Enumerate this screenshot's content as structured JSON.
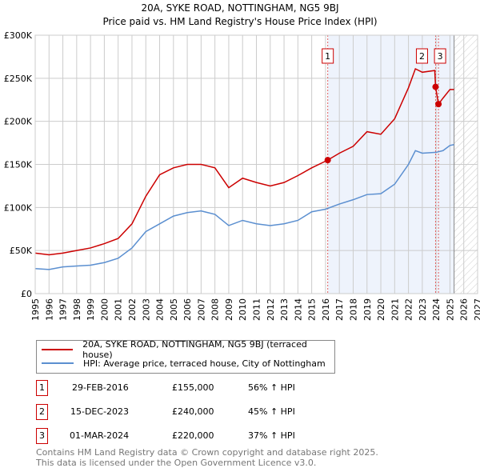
{
  "chart_data": {
    "type": "line",
    "title": "20A, SYKE ROAD, NOTTINGHAM, NG5 9BJ",
    "subtitle": "Price paid vs. HM Land Registry's House Price Index (HPI)",
    "xlim": [
      1995,
      2027
    ],
    "ylim": [
      0,
      300000
    ],
    "x_ticks": [
      "1995",
      "1996",
      "1997",
      "1998",
      "1999",
      "2000",
      "2001",
      "2002",
      "2003",
      "2004",
      "2005",
      "2006",
      "2007",
      "2008",
      "2009",
      "2010",
      "2011",
      "2012",
      "2013",
      "2014",
      "2015",
      "2016",
      "2017",
      "2018",
      "2019",
      "2020",
      "2021",
      "2022",
      "2023",
      "2024",
      "2025",
      "2026",
      "2027"
    ],
    "y_ticks": [
      {
        "v": 0,
        "label": "£0"
      },
      {
        "v": 50000,
        "label": "£50K"
      },
      {
        "v": 100000,
        "label": "£100K"
      },
      {
        "v": 150000,
        "label": "£150K"
      },
      {
        "v": 200000,
        "label": "£200K"
      },
      {
        "v": 250000,
        "label": "£250K"
      },
      {
        "v": 300000,
        "label": "£300K"
      }
    ],
    "grid": true,
    "series": [
      {
        "name": "20A, SYKE ROAD, NOTTINGHAM, NG5 9BJ (terraced house)",
        "color": "#cc0000",
        "x": [
          1995,
          1996,
          1997,
          1998,
          1999,
          2000,
          2001,
          2002,
          2003,
          2004,
          2005,
          2006,
          2007,
          2008,
          2009,
          2010,
          2011,
          2012,
          2013,
          2014,
          2015,
          2016.16,
          2017,
          2018,
          2019,
          2020,
          2021,
          2022,
          2022.5,
          2023,
          2023.9,
          2023.96,
          2024.17,
          2024.5,
          2025,
          2025.3
        ],
        "y": [
          47000,
          45000,
          47000,
          50000,
          53000,
          58000,
          64000,
          81000,
          113000,
          138000,
          146000,
          150000,
          150000,
          146000,
          123000,
          134000,
          129000,
          125000,
          129000,
          137000,
          146000,
          155000,
          163000,
          171000,
          188000,
          185000,
          203000,
          239000,
          261000,
          257000,
          259000,
          240000,
          220000,
          227000,
          237000,
          237000
        ]
      },
      {
        "name": "HPI: Average price, terraced house, City of Nottingham",
        "color": "#5b8fd0",
        "x": [
          1995,
          1996,
          1997,
          1998,
          1999,
          2000,
          2001,
          2002,
          2003,
          2004,
          2005,
          2006,
          2007,
          2008,
          2009,
          2010,
          2011,
          2012,
          2013,
          2014,
          2015,
          2016,
          2017,
          2018,
          2019,
          2020,
          2021,
          2022,
          2022.5,
          2023,
          2024,
          2024.5,
          2025,
          2025.3
        ],
        "y": [
          29000,
          28000,
          31000,
          32000,
          33000,
          36000,
          41000,
          53000,
          72000,
          81000,
          90000,
          94000,
          96000,
          92000,
          79000,
          85000,
          81000,
          79000,
          81000,
          85000,
          95000,
          98000,
          104000,
          109000,
          115000,
          116000,
          127000,
          150000,
          166000,
          163000,
          164000,
          166000,
          172000,
          173000
        ]
      }
    ],
    "sales": [
      {
        "num": "1",
        "x": 2016.16,
        "y": 155000,
        "date": "29-FEB-2016",
        "price": "£155,000",
        "hpi": "56% ↑ HPI"
      },
      {
        "num": "2",
        "x": 2023.96,
        "y": 240000,
        "date": "15-DEC-2023",
        "price": "£240,000",
        "hpi": "45% ↑ HPI"
      },
      {
        "num": "3",
        "x": 2024.17,
        "y": 220000,
        "date": "01-MAR-2024",
        "price": "£220,000",
        "hpi": "37% ↑ HPI"
      }
    ],
    "shaded_from": 2016.16,
    "forecast_from": 2025.3
  },
  "footer": {
    "line1": "Contains HM Land Registry data © Crown copyright and database right 2025.",
    "line2": "This data is licensed under the Open Government Licence v3.0."
  }
}
